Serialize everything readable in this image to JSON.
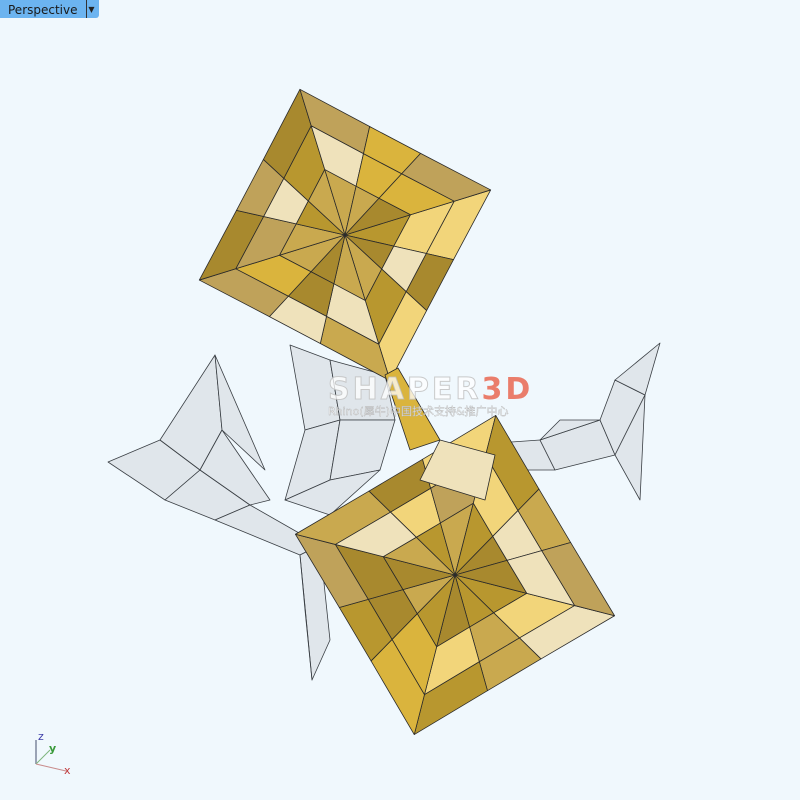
{
  "viewport": {
    "title": "Perspective",
    "dropdown_icon": "triangle-down"
  },
  "watermark": {
    "logo": "SHAPER",
    "logo_accent": "3D",
    "subtitle": "Rhino(犀牛)中国技术支持&推广中心"
  },
  "axes": {
    "x": "x",
    "y": "y",
    "z": "z",
    "x_color": "#c0383a",
    "y_color": "#3a9a3a",
    "z_color": "#3c3ca8"
  },
  "colors": {
    "background": "#f0f8fd",
    "tab": "#6cb4f0",
    "surface_gold": [
      "#a8892e",
      "#b8972f",
      "#c9a94f",
      "#dab43d",
      "#f2d57a",
      "#efe2bb",
      "#bfa25a"
    ],
    "surface_gray": "#dde3e8"
  }
}
